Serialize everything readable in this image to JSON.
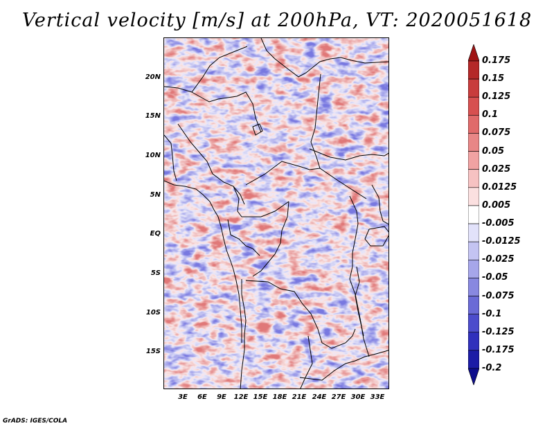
{
  "title": "Vertical velocity [m/s] at 200hPa, VT: 2020051618",
  "credit": "GrADS: IGES/COLA",
  "axes": {
    "lat_labels": [
      "20N",
      "15N",
      "10N",
      "5N",
      "EQ",
      "5S",
      "10S",
      "15S"
    ],
    "lon_labels": [
      "3E",
      "6E",
      "9E",
      "12E",
      "15E",
      "18E",
      "21E",
      "24E",
      "27E",
      "30E",
      "33E"
    ]
  },
  "colorbar": {
    "labels": [
      "0.175",
      "0.15",
      "0.125",
      "0.1",
      "0.075",
      "0.05",
      "0.025",
      "0.0125",
      "0.005",
      "-0.005",
      "-0.0125",
      "-0.025",
      "-0.05",
      "-0.075",
      "-0.1",
      "-0.125",
      "-0.175",
      "-0.2"
    ],
    "colors": [
      "#a01414",
      "#b42828",
      "#c83c3c",
      "#d75050",
      "#e06a6a",
      "#e88686",
      "#f0a2a2",
      "#f6c2c2",
      "#fbe0e0",
      "#ffffff",
      "#e2e2fa",
      "#c4c4f2",
      "#a6a6ea",
      "#8888e0",
      "#6a6ad6",
      "#4c4ccc",
      "#3030bc",
      "#1c1ca6",
      "#0e0e8c"
    ]
  }
}
